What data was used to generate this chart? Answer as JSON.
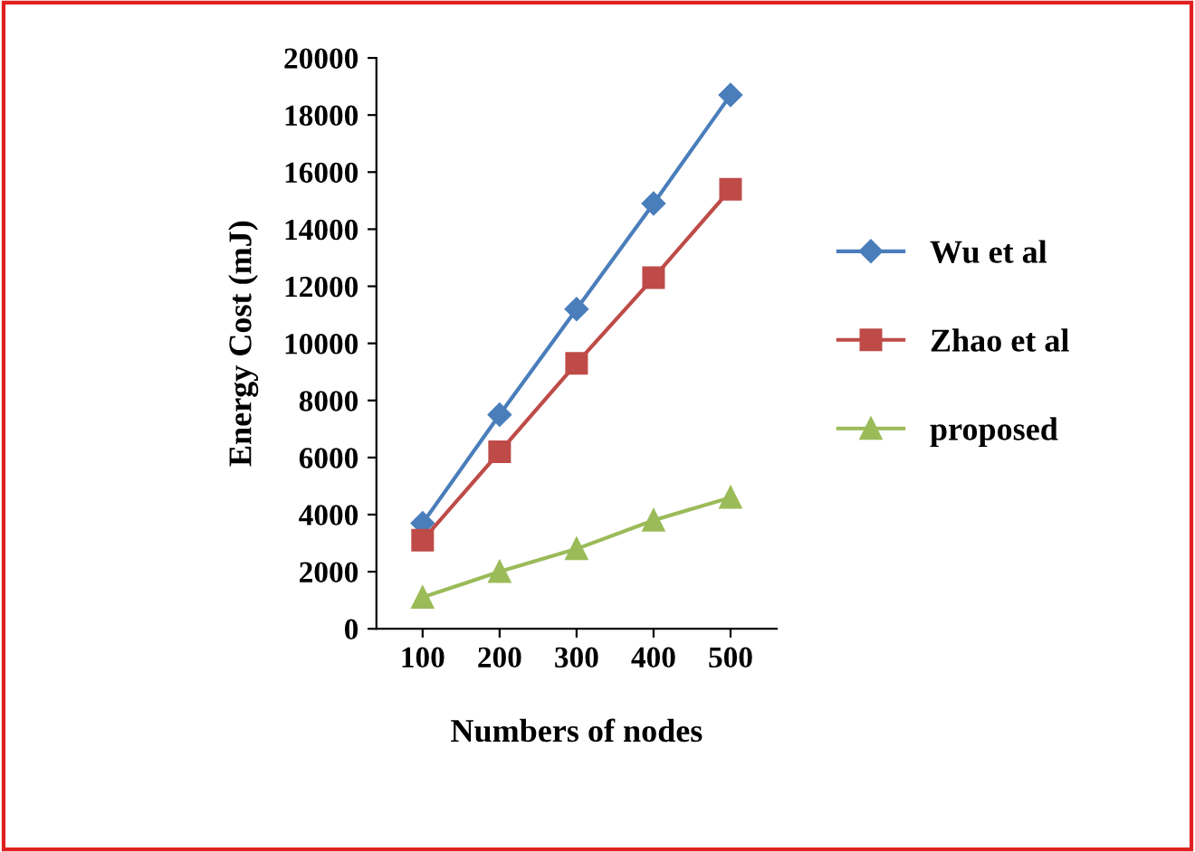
{
  "chart_data": {
    "type": "line",
    "xlabel": "Numbers of nodes",
    "ylabel": "Energy Cost (mJ)",
    "categories": [
      "100",
      "200",
      "300",
      "400",
      "500"
    ],
    "series": [
      {
        "name": "Wu et al",
        "color": "#4a7ebb",
        "marker": "diamond",
        "values": [
          3700,
          7500,
          11200,
          14900,
          18700
        ]
      },
      {
        "name": "Zhao et al",
        "color": "#be4b48",
        "marker": "square",
        "values": [
          3100,
          6200,
          9300,
          12300,
          15400
        ]
      },
      {
        "name": "proposed",
        "color": "#9bbb59",
        "marker": "triangle",
        "values": [
          1100,
          2000,
          2800,
          3800,
          4600
        ]
      }
    ],
    "ylim": [
      0,
      20000
    ],
    "yticks": [
      0,
      2000,
      4000,
      6000,
      8000,
      10000,
      12000,
      14000,
      16000,
      18000,
      20000
    ],
    "grid": false,
    "legend": "right"
  }
}
